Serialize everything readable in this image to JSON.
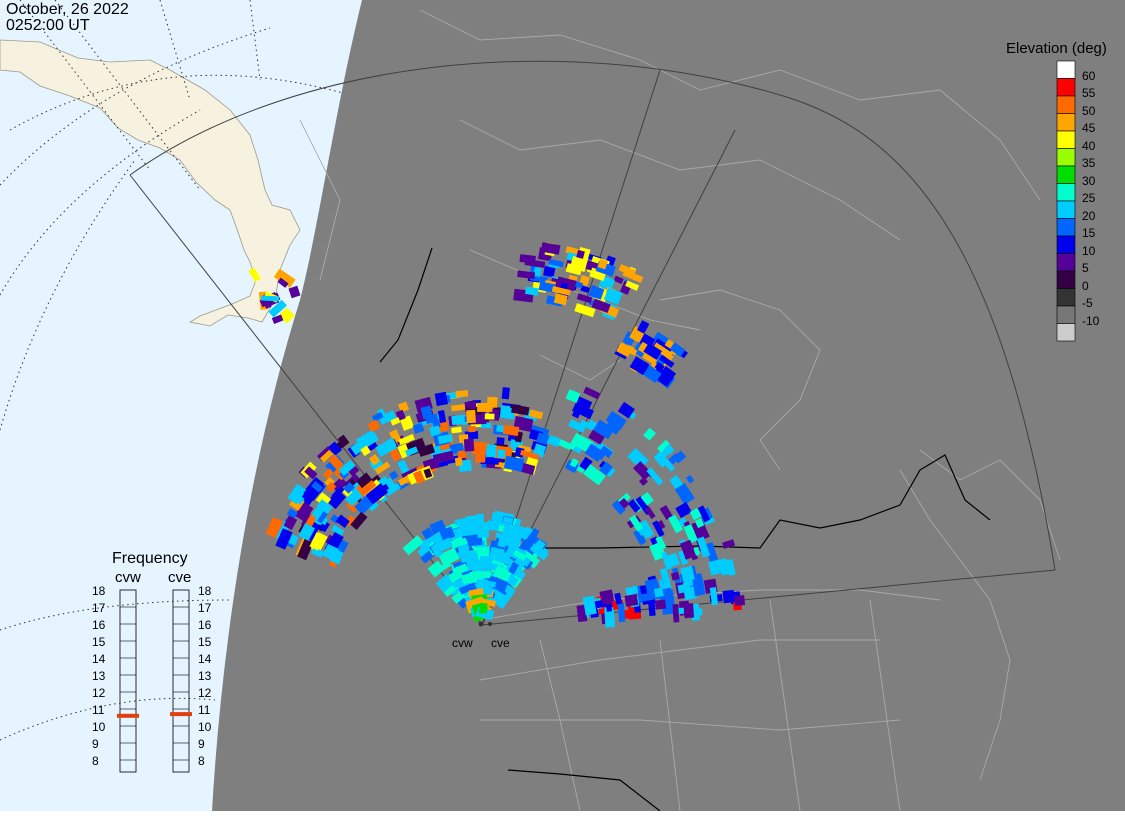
{
  "header": {
    "date": "October, 26 2022",
    "time": "0252:00 UT"
  },
  "legend": {
    "title": "Elevation (deg)",
    "entries": [
      {
        "label": "60",
        "color": "#ffffff"
      },
      {
        "label": "55",
        "color": "#ff0000"
      },
      {
        "label": "50",
        "color": "#ff6a00"
      },
      {
        "label": "45",
        "color": "#ffa500"
      },
      {
        "label": "40",
        "color": "#ffff00"
      },
      {
        "label": "35",
        "color": "#99ff00"
      },
      {
        "label": "30",
        "color": "#00dd00"
      },
      {
        "label": "25",
        "color": "#00ffcc"
      },
      {
        "label": "20",
        "color": "#00ccff"
      },
      {
        "label": "15",
        "color": "#0066ff"
      },
      {
        "label": "10",
        "color": "#0000ee"
      },
      {
        "label": "5",
        "color": "#550099"
      },
      {
        "label": "0",
        "color": "#330044"
      },
      {
        "label": "-5",
        "color": "#333333"
      },
      {
        "label": "-10",
        "color": "#777777"
      },
      {
        "label": "",
        "color": "#cccccc"
      }
    ]
  },
  "frequency": {
    "title": "Frequency",
    "radars": [
      {
        "name": "cvw",
        "value": 10.6
      },
      {
        "name": "cve",
        "value": 10.7
      }
    ],
    "scale": [
      "18",
      "17",
      "16",
      "15",
      "14",
      "13",
      "12",
      "11",
      "10",
      "9",
      "8"
    ],
    "marker_color": "#e04010"
  },
  "sites": [
    {
      "name": "cvw"
    },
    {
      "name": "cve"
    }
  ],
  "colors": {
    "night": "#7f7f7f",
    "ocean_day": "#e6f4ff",
    "land_day": "#f7f2df",
    "border": "#a9a9a9",
    "fov": "#404040"
  }
}
